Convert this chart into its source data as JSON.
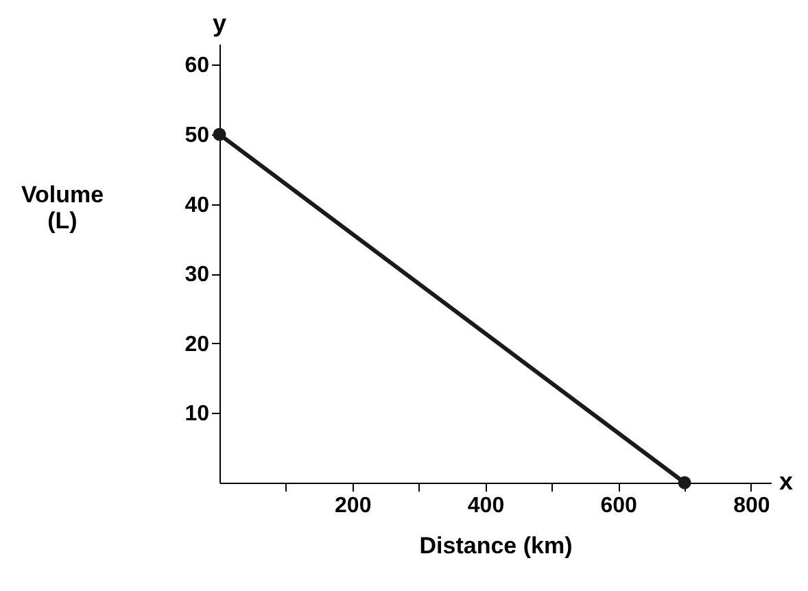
{
  "chart_data": {
    "type": "line",
    "xlabel": "Distance (km)",
    "ylabel": "Volume (L)",
    "annotations": [
      "y",
      "x"
    ],
    "x": [
      0,
      700
    ],
    "series": [
      {
        "color": "#1a1a1a",
        "values": [
          50,
          0
        ]
      }
    ],
    "xlim": [
      0,
      830
    ],
    "ylim": [
      0,
      63
    ],
    "xticks": [
      {
        "value": 100,
        "label": null
      },
      200,
      {
        "value": 300,
        "label": null
      },
      400,
      {
        "value": 500,
        "label": null
      },
      600,
      {
        "value": 700,
        "label": null
      },
      800
    ],
    "yticks": [
      10,
      20,
      30,
      40,
      50,
      60
    ],
    "grid": false,
    "legend": false,
    "marker": "circle",
    "line_style": "solid"
  }
}
